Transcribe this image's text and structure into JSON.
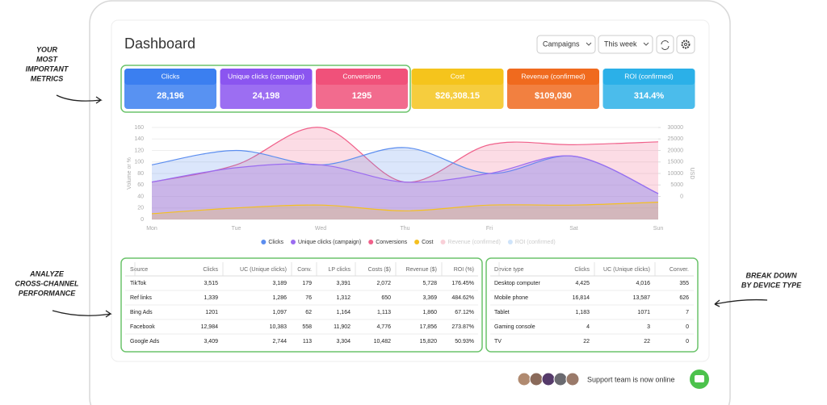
{
  "annotations": [
    {
      "lines": [
        "YOUR",
        "MOST",
        "IMPORTANT",
        "METRICS"
      ]
    },
    {
      "lines": [
        "ANALYZE",
        "CROSS-CHANNEL",
        "PERFORMANCE"
      ]
    },
    {
      "lines": [
        "BREAK DOWN",
        "BY DEVICE TYPE"
      ]
    }
  ],
  "header": {
    "title": "Dashboard",
    "controls": [
      "Campaigns",
      "This week"
    ]
  },
  "metrics": [
    {
      "label": "Clicks",
      "value": "28,196",
      "color": "#3b7ff0"
    },
    {
      "label": "Unique clicks (campaign)",
      "value": "24,198",
      "color": "#8b55f0"
    },
    {
      "label": "Conversions",
      "value": "1295",
      "color": "#f0517a"
    },
    {
      "label": "Cost",
      "value": "$26,308.15",
      "color": "#f5c41c"
    },
    {
      "label": "Revenue (confirmed)",
      "value": "$109,030",
      "color": "#f06a1e"
    },
    {
      "label": "ROI (confirmed)",
      "value": "314.4%",
      "color": "#2bb0e8"
    }
  ],
  "chart_data": {
    "type": "area",
    "ylabel": "Volume or %",
    "y2label": "USD",
    "categories": [
      "Mon",
      "Tue",
      "Wed",
      "Thu",
      "Fri",
      "Sat",
      "Sun"
    ],
    "ylim": [
      0,
      160
    ],
    "yticks": [
      0,
      20,
      40,
      60,
      80,
      100,
      120,
      140,
      160
    ],
    "y2lim": [
      -10000,
      30000
    ],
    "y2ticks": [
      0,
      5000,
      10000,
      15000,
      20000,
      25000,
      30000
    ],
    "series": [
      {
        "name": "Clicks",
        "color": "#5b8def",
        "visible": true,
        "values": [
          95,
          120,
          95,
          125,
          80,
          110,
          45
        ]
      },
      {
        "name": "Unique clicks (campaign)",
        "color": "#9b6cf0",
        "visible": true,
        "values": [
          65,
          90,
          95,
          65,
          80,
          110,
          45
        ]
      },
      {
        "name": "Conversions",
        "color": "#f0608a",
        "visible": true,
        "values": [
          65,
          95,
          160,
          65,
          130,
          130,
          135
        ]
      },
      {
        "name": "Cost",
        "color": "#f5c020",
        "visible": true,
        "values": [
          10,
          20,
          25,
          15,
          25,
          25,
          30
        ]
      },
      {
        "name": "Revenue (confirmed)",
        "color": "#f9d0d8",
        "visible": false
      },
      {
        "name": "ROI (confirmed)",
        "color": "#cfe4fa",
        "visible": false
      }
    ]
  },
  "source_table": {
    "columns": [
      "Source",
      "Clicks",
      "UC (Unique clicks)",
      "Conv.",
      "LP clicks",
      "Costs ($)",
      "Revenue ($)",
      "ROI (%)"
    ],
    "rows": [
      [
        "TikTok",
        "3,515",
        "3,189",
        "179",
        "3,391",
        "2,072",
        "5,728",
        "176.45%"
      ],
      [
        "Ref links",
        "1,339",
        "1,286",
        "76",
        "1,312",
        "650",
        "3,369",
        "484.62%"
      ],
      [
        "Bing Ads",
        "1201",
        "1,097",
        "62",
        "1,164",
        "1,113",
        "1,860",
        "67.12%"
      ],
      [
        "Facebook",
        "12,984",
        "10,383",
        "558",
        "11,902",
        "4,776",
        "17,856",
        "273.87%"
      ],
      [
        "Google Ads",
        "3,409",
        "2,744",
        "113",
        "3,304",
        "10,482",
        "15,820",
        "50.93%"
      ]
    ]
  },
  "device_table": {
    "columns": [
      "Device type",
      "Clicks",
      "UC (Unique clicks)",
      "Conver."
    ],
    "rows": [
      [
        "Desktop computer",
        "4,425",
        "4,016",
        "355"
      ],
      [
        "Mobile phone",
        "16,814",
        "13,587",
        "626"
      ],
      [
        "Tablet",
        "1,183",
        "1071",
        "7"
      ],
      [
        "Gaming console",
        "4",
        "3",
        "0"
      ],
      [
        "TV",
        "22",
        "22",
        "0"
      ]
    ]
  },
  "support": "Support team is now online"
}
